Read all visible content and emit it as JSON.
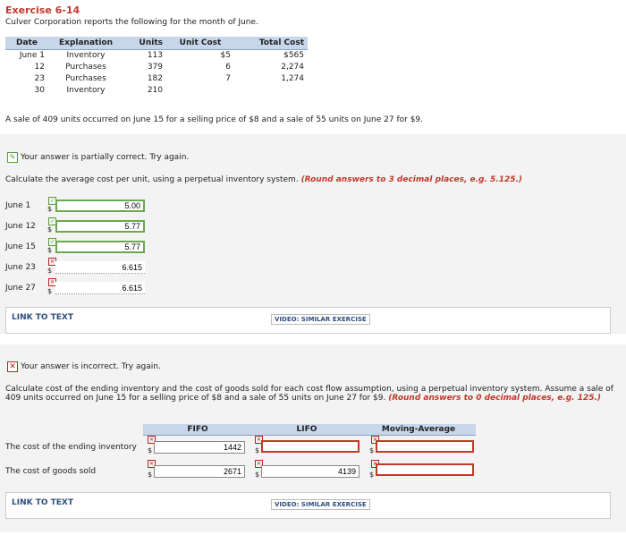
{
  "exercise_title": "Exercise 6-14",
  "intro": "Culver Corporation reports the following for the month of June.",
  "table": {
    "headers": [
      "Date",
      "Explanation",
      "Units",
      "Unit Cost",
      "Total Cost"
    ],
    "rows": [
      [
        "June 1",
        "Inventory",
        "113",
        "$5",
        "$565"
      ],
      [
        "12",
        "Purchases",
        "379",
        "6",
        "2,274"
      ],
      [
        "23",
        "Purchases",
        "182",
        "7",
        "1,274"
      ],
      [
        "30",
        "Inventory",
        "210",
        "",
        ""
      ]
    ]
  },
  "sale_text": "A sale of 409 units occurred on June 15 for a selling price of $8 and a sale of 55 units on June 27 for $9.",
  "part1": {
    "feedback": "Your answer is partially correct.  Try again.",
    "instruction": "Calculate the average cost per unit, using a perpetual inventory system.",
    "instruction_bold": "(Round answers to 3 decimal places, e.g. 5.125.)",
    "rows": [
      {
        "label": "June 1",
        "value": "5.00",
        "status": "correct"
      },
      {
        "label": "June 12",
        "value": "5.77",
        "status": "correct"
      },
      {
        "label": "June 15",
        "value": "5.77",
        "status": "correct"
      },
      {
        "label": "June 23",
        "value": "6.615",
        "status": "incorrect"
      },
      {
        "label": "June 27",
        "value": "6.615",
        "status": "incorrect"
      }
    ],
    "link_text": "LINK TO TEXT",
    "video": "VIDEO: SIMILAR EXERCISE"
  },
  "part2": {
    "feedback": "Your answer is incorrect.  Try again.",
    "instruction": "Calculate cost of the ending inventory and the cost of goods sold for each cost flow assumption, using a perpetual inventory system. Assume a sale of 409 units occurred on June 15 for a selling price of $8 and a sale of 55 units on June 27 for $9.",
    "instruction_bold": "(Round answers to 0 decimal places, e.g. 125.)",
    "columns": [
      "FIFO",
      "LIFO",
      "Moving-Average"
    ],
    "row1_label": "The cost of the ending inventory",
    "row2_label": "The cost of goods sold",
    "row1_values": [
      "1442",
      "",
      ""
    ],
    "row2_values": [
      "2671",
      "4139",
      ""
    ],
    "link_text": "LINK TO TEXT",
    "video": "VIDEO: SIMILAR EXERCISE"
  },
  "currency_symbol": "$",
  "colors": {
    "accent_red": "#c0392b",
    "correct_green": "#6aa84f",
    "header_blue": "#c7d6ea"
  }
}
